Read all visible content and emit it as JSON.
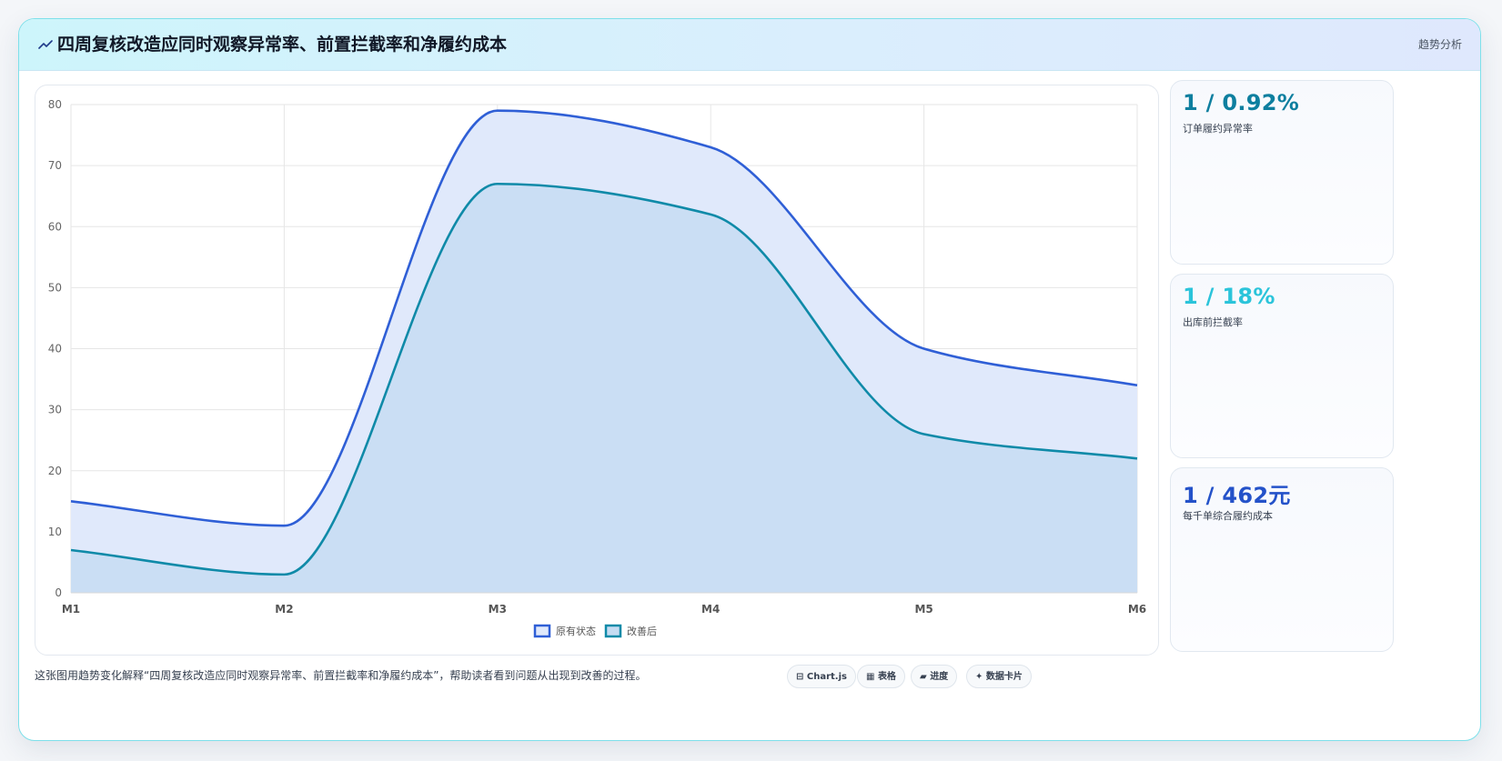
{
  "header": {
    "icon": "trend-line-icon",
    "title": "四周复核改造应同时观察异常率、前置拦截率和净履约成本",
    "tag": "趋势分析"
  },
  "chart_data": {
    "type": "area",
    "categories": [
      "M1",
      "M2",
      "M3",
      "M4",
      "M5",
      "M6"
    ],
    "series": [
      {
        "name": "原有状态",
        "values": [
          15,
          11,
          79,
          73,
          40,
          34
        ],
        "color": "#2f5fd6",
        "fill": "#e0e9fb"
      },
      {
        "name": "改善后",
        "values": [
          7,
          3,
          67,
          62,
          26,
          22
        ],
        "color": "#0f8aa8",
        "fill": "#c6dcf2"
      }
    ],
    "ylim": [
      0,
      80
    ],
    "yticks": [
      0,
      10,
      20,
      30,
      40,
      50,
      60,
      70,
      80
    ],
    "grid": true,
    "legend": "bottom"
  },
  "kpis": [
    {
      "value": "1 / 0.92%",
      "label": "订单履约异常率",
      "color": "#0e7f9f"
    },
    {
      "value": "1 / 18%",
      "label": "出库前拦截率",
      "color": "#2bc4da"
    },
    {
      "value": "1 / 462元",
      "label": "每千单综合履约成本",
      "color": "#2452c9"
    }
  ],
  "caption": "这张图用趋势变化解释“四周复核改造应同时观察异常率、前置拦截率和净履约成本”，帮助读者看到问题从出现到改善的过程。",
  "chips": [
    {
      "icon": "chart-icon",
      "glyph": "⊟",
      "label": "Chart.js"
    },
    {
      "icon": "table-icon",
      "glyph": "▦",
      "label": "表格"
    },
    {
      "icon": "progress-icon",
      "glyph": "▰",
      "label": "进度"
    },
    {
      "icon": "sparkle-icon",
      "glyph": "✦",
      "label": "数据卡片"
    }
  ]
}
